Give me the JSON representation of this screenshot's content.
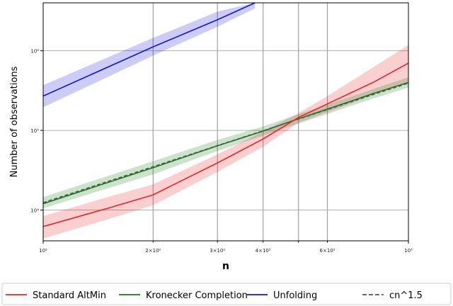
{
  "chart_data": {
    "type": "line",
    "title": "",
    "xlabel": "n",
    "ylabel": "Number of observations",
    "xscale": "log",
    "yscale": "log",
    "xlim": [
      100,
      1000
    ],
    "ylim": [
      4100,
      4000000
    ],
    "grid": "partial",
    "legend_position": "bottom",
    "x_ticks": [
      {
        "value": 100,
        "label": "10²",
        "major": true
      },
      {
        "value": 200,
        "label": "2×10²",
        "major": false
      },
      {
        "value": 300,
        "label": "3×10²",
        "major": false
      },
      {
        "value": 400,
        "label": "4×10²",
        "major": false
      },
      {
        "value": 500,
        "label": "",
        "major": false
      },
      {
        "value": 600,
        "label": "6×10²",
        "major": false
      },
      {
        "value": 1000,
        "label": "10³",
        "major": true
      }
    ],
    "y_ticks": [
      {
        "value": 10000,
        "label": "10⁴"
      },
      {
        "value": 100000,
        "label": "10⁵"
      },
      {
        "value": 1000000,
        "label": "10⁶"
      }
    ],
    "series": [
      {
        "name": "Standard AltMin",
        "color": "#e8242a",
        "dashed": false,
        "x": [
          100,
          150,
          200,
          300,
          400,
          500,
          600,
          700,
          800,
          1000
        ],
        "y": [
          6200,
          10500,
          15500,
          39000,
          78000,
          145000,
          215000,
          300000,
          400000,
          700000
        ],
        "band_lower": [
          4400,
          7600,
          11500,
          30000,
          62000,
          125000,
          170000,
          220000,
          280000,
          410000
        ],
        "band_upper": [
          8400,
          14500,
          21000,
          50000,
          97000,
          165000,
          270000,
          420000,
          620000,
          1180000
        ]
      },
      {
        "name": "Kronecker Completion",
        "color": "#1a7a1a",
        "dashed": false,
        "x": [
          100,
          200,
          300,
          400,
          500,
          600,
          700,
          800,
          1000
        ],
        "y": [
          12000,
          34000,
          64000,
          98000,
          140000,
          185000,
          235000,
          290000,
          400000
        ],
        "band_lower": [
          10500,
          28000,
          55000,
          86000,
          122000,
          160000,
          205000,
          250000,
          345000
        ],
        "band_upper": [
          14500,
          41000,
          76000,
          112000,
          160000,
          212000,
          268000,
          330000,
          465000
        ]
      },
      {
        "name": "Unfolding",
        "color": "#1515d8",
        "dashed": false,
        "x": [
          100,
          200,
          300,
          380
        ],
        "y": [
          270000,
          1120000,
          2450000,
          4000000
        ],
        "band_lower": [
          195000,
          870000,
          2000000,
          3400000
        ],
        "band_upper": [
          370000,
          1450000,
          3100000,
          4000000
        ]
      },
      {
        "name": "cn^1.5",
        "color": "#555555",
        "dashed": true,
        "x": [
          100,
          200,
          300,
          400,
          500,
          600,
          700,
          800,
          1000
        ],
        "y": [
          12400,
          35000,
          64500,
          99000,
          139000,
          182000,
          230000,
          281000,
          392000
        ]
      }
    ]
  },
  "legend": {
    "items": [
      {
        "label": "Standard AltMin",
        "color": "#e8242a",
        "dashed": false
      },
      {
        "label": "Kronecker Completion",
        "color": "#1a7a1a",
        "dashed": false
      },
      {
        "label": "Unfolding",
        "color": "#1515d8",
        "dashed": false
      },
      {
        "label": "cn^1.5",
        "color": "#555555",
        "dashed": true
      }
    ]
  }
}
